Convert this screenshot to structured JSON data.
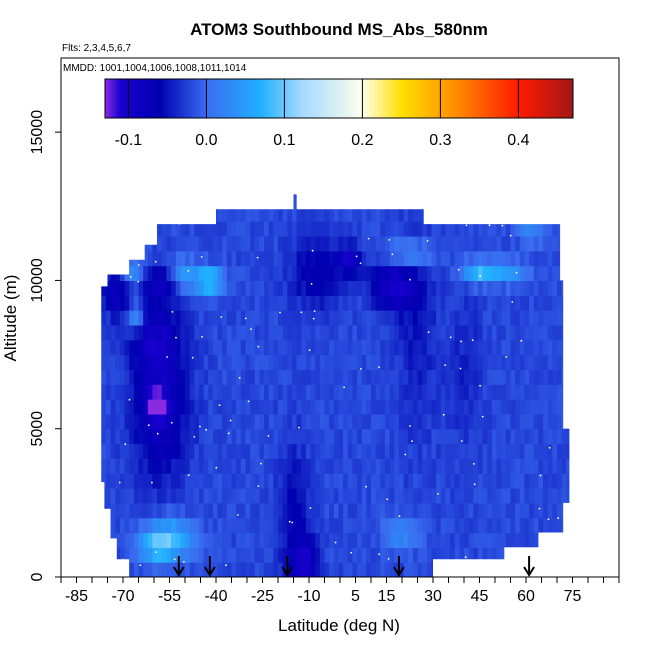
{
  "chart_data": {
    "type": "heatmap",
    "title": "ATOM3 Southbound MS_Abs_580nm",
    "flights_text": "Flts: 2,3,4,5,6,7",
    "mmdd_text": "MMDD: 1001,1004,1006,1008,1011,1014",
    "xlabel": "Latitude (deg N)",
    "ylabel": "Altitude (m)",
    "xlim": [
      -90,
      90
    ],
    "ylim": [
      0,
      17500
    ],
    "x_tick_labels": [
      {
        "value": -85,
        "label": "-85"
      },
      {
        "value": -70,
        "label": "-70"
      },
      {
        "value": -55,
        "label": "-55"
      },
      {
        "value": -40,
        "label": "-40"
      },
      {
        "value": -25,
        "label": "-25"
      },
      {
        "value": -10,
        "label": "-10"
      },
      {
        "value": 5,
        "label": "5"
      },
      {
        "value": 15,
        "label": "15"
      },
      {
        "value": 30,
        "label": "30"
      },
      {
        "value": 45,
        "label": "45"
      },
      {
        "value": 60,
        "label": "60"
      },
      {
        "value": 75,
        "label": "75"
      }
    ],
    "x_minor_ticks": [
      -90,
      -80,
      -75,
      -65,
      -60,
      -50,
      -45,
      -35,
      -30,
      -20,
      -15,
      -5,
      0,
      10,
      20,
      25,
      35,
      40,
      50,
      55,
      65,
      70,
      80,
      85,
      90
    ],
    "y_ticks": [
      {
        "value": 0,
        "label": "0"
      },
      {
        "value": 5000,
        "label": "5000"
      },
      {
        "value": 10000,
        "label": "10000"
      },
      {
        "value": 15000,
        "label": "15000"
      }
    ],
    "colorbar": {
      "range": [
        -0.13,
        0.47
      ],
      "ticks": [
        {
          "value": -0.1,
          "label": "-0.1"
        },
        {
          "value": 0.0,
          "label": "0.0"
        },
        {
          "value": 0.1,
          "label": "0.1"
        },
        {
          "value": 0.2,
          "label": "0.2"
        },
        {
          "value": 0.3,
          "label": "0.3"
        },
        {
          "value": 0.4,
          "label": "0.4"
        }
      ],
      "colors": [
        {
          "value": -0.13,
          "color": "#8a2be2"
        },
        {
          "value": -0.11,
          "color": "#1a00d0"
        },
        {
          "value": -0.06,
          "color": "#0000b0"
        },
        {
          "value": 0.0,
          "color": "#3a6cf0"
        },
        {
          "value": 0.07,
          "color": "#20b0ff"
        },
        {
          "value": 0.12,
          "color": "#a0d8ff"
        },
        {
          "value": 0.2,
          "color": "#ffffee"
        },
        {
          "value": 0.25,
          "color": "#ffe000"
        },
        {
          "value": 0.32,
          "color": "#ff8c00"
        },
        {
          "value": 0.4,
          "color": "#ff1a00"
        },
        {
          "value": 0.47,
          "color": "#a01818"
        }
      ]
    },
    "flight_profile_arrows_lat": [
      -52,
      -42,
      -17,
      19,
      61
    ],
    "field": {
      "background_value": -0.02,
      "envelope": [
        [
          -68,
          0
        ],
        [
          -68,
          600
        ],
        [
          -72,
          600
        ],
        [
          -72,
          1300
        ],
        [
          -74,
          1300
        ],
        [
          -74,
          2300
        ],
        [
          -76,
          2300
        ],
        [
          -76,
          3200
        ],
        [
          -77,
          3200
        ],
        [
          -77,
          9800
        ],
        [
          -75,
          9800
        ],
        [
          -75,
          10200
        ],
        [
          -68,
          10200
        ],
        [
          -68,
          10700
        ],
        [
          -63,
          10700
        ],
        [
          -63,
          11200
        ],
        [
          -59,
          11200
        ],
        [
          -59,
          11900
        ],
        [
          -40,
          11900
        ],
        [
          -40,
          12400
        ],
        [
          -15,
          12400
        ],
        [
          -15,
          12900
        ],
        [
          -14,
          12900
        ],
        [
          -14,
          12400
        ],
        [
          27,
          12400
        ],
        [
          27,
          11900
        ],
        [
          71,
          11900
        ],
        [
          71,
          10000
        ],
        [
          72,
          10000
        ],
        [
          72,
          5000
        ],
        [
          74,
          5000
        ],
        [
          74,
          2500
        ],
        [
          72,
          2500
        ],
        [
          72,
          1500
        ],
        [
          64,
          1500
        ],
        [
          64,
          1000
        ],
        [
          53,
          1000
        ],
        [
          53,
          600
        ],
        [
          30,
          600
        ],
        [
          30,
          0
        ]
      ],
      "features": [
        {
          "lat": -58,
          "alt": 5800,
          "rlat": 9,
          "ralt": 2500,
          "value": -0.09
        },
        {
          "lat": -59,
          "alt": 5800,
          "rlat": 3,
          "ralt": 400,
          "value": -0.13
        },
        {
          "lat": -60,
          "alt": 8200,
          "rlat": 8,
          "ralt": 1200,
          "value": -0.07
        },
        {
          "lat": -72,
          "alt": 9600,
          "rlat": 5,
          "ralt": 800,
          "value": -0.08
        },
        {
          "lat": -58,
          "alt": 9900,
          "rlat": 5,
          "ralt": 500,
          "value": -0.08
        },
        {
          "lat": -8,
          "alt": 10300,
          "rlat": 8,
          "ralt": 1200,
          "value": -0.07
        },
        {
          "lat": 3,
          "alt": 10700,
          "rlat": 4,
          "ralt": 500,
          "value": -0.1
        },
        {
          "lat": 17,
          "alt": 9900,
          "rlat": 7,
          "ralt": 900,
          "value": -0.1
        },
        {
          "lat": 25,
          "alt": 8500,
          "rlat": 6,
          "ralt": 3500,
          "value": -0.05
        },
        {
          "lat": 40,
          "alt": 7000,
          "rlat": 6,
          "ralt": 3000,
          "value": -0.04
        },
        {
          "lat": -15,
          "alt": 2000,
          "rlat": 5,
          "ralt": 2500,
          "value": -0.06
        },
        {
          "lat": -11,
          "alt": 500,
          "rlat": 4,
          "ralt": 900,
          "value": -0.09
        },
        {
          "lat": -42,
          "alt": 10000,
          "rlat": 4,
          "ralt": 400,
          "value": 0.11
        },
        {
          "lat": -50,
          "alt": 10200,
          "rlat": 5,
          "ralt": 500,
          "value": 0.05
        },
        {
          "lat": -67,
          "alt": 10300,
          "rlat": 3,
          "ralt": 500,
          "value": 0.05
        },
        {
          "lat": -66,
          "alt": 8800,
          "rlat": 3,
          "ralt": 500,
          "value": 0.06
        },
        {
          "lat": -55,
          "alt": 1300,
          "rlat": 8,
          "ralt": 700,
          "value": 0.08
        },
        {
          "lat": -60,
          "alt": 1000,
          "rlat": 6,
          "ralt": 500,
          "value": 0.04
        },
        {
          "lat": 45,
          "alt": 10300,
          "rlat": 6,
          "ralt": 400,
          "value": 0.08
        },
        {
          "lat": 22,
          "alt": 10900,
          "rlat": 8,
          "ralt": 500,
          "value": 0.05
        },
        {
          "lat": 55,
          "alt": 10300,
          "rlat": 6,
          "ralt": 400,
          "value": 0.04
        },
        {
          "lat": 20,
          "alt": 1500,
          "rlat": 6,
          "ralt": 600,
          "value": 0.03
        },
        {
          "lat": 62,
          "alt": 11600,
          "rlat": 5,
          "ralt": 300,
          "value": 0.04
        }
      ]
    }
  },
  "colors": {
    "axis": "#000000",
    "arrow": "#000000",
    "speck": "#ffffff"
  }
}
